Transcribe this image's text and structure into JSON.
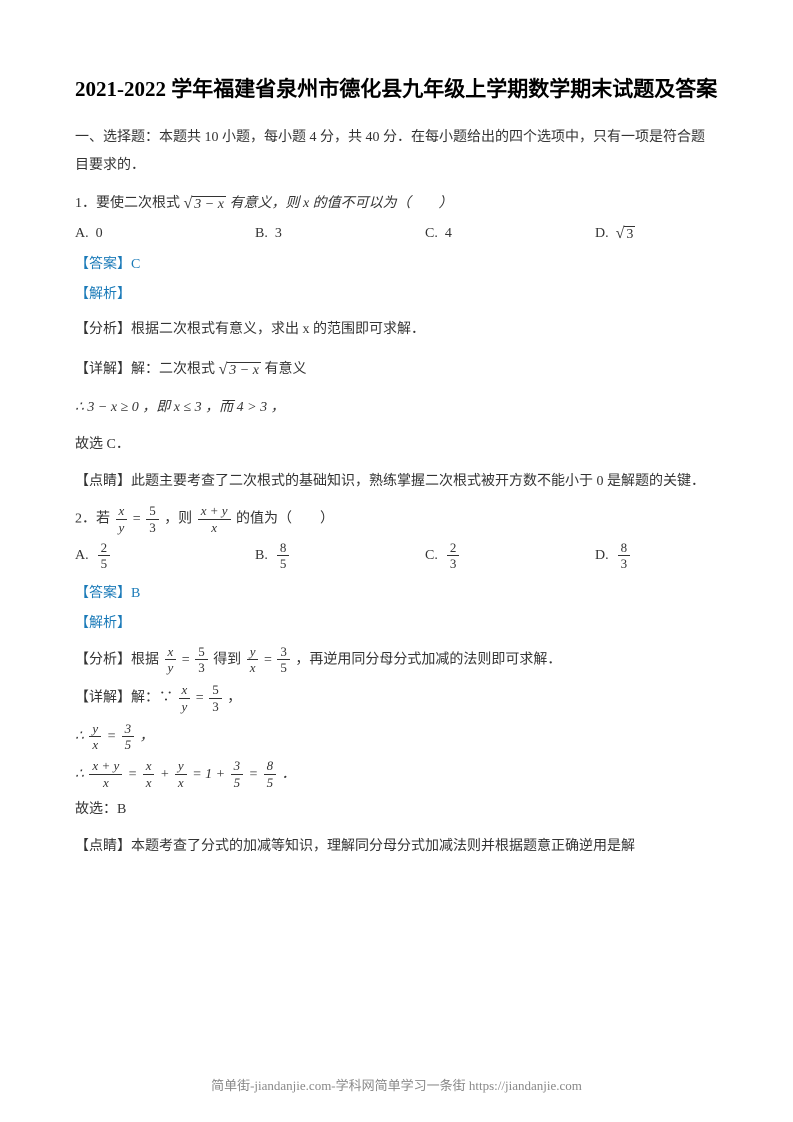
{
  "title": "2021-2022 学年福建省泉州市德化县九年级上学期数学期末试题及答案",
  "section_header": "一、选择题：本题共 10 小题，每小题 4 分，共 40 分．在每小题给出的四个选项中，只有一项是符合题目要求的．",
  "q1": {
    "prefix": "1．要使二次根式",
    "expr_inner": "3 − x",
    "suffix": " 有意义，则 x 的值不可以为（　　）",
    "options": {
      "a_label": "A.",
      "a_val": "0",
      "b_label": "B.",
      "b_val": "3",
      "c_label": "C.",
      "c_val": "4",
      "d_label": "D.",
      "d_val_inner": "3"
    },
    "answer_label": "【答案】",
    "answer": "C",
    "parse_label": "【解析】",
    "analysis1": "【分析】根据二次根式有意义，求出 x 的范围即可求解．",
    "detail_prefix": "【详解】解：二次根式 ",
    "detail_inner": "3 − x",
    "detail_suffix": " 有意义",
    "step": "∴ 3 − x ≥ 0 ，即 x ≤ 3 ，而 4 > 3 ，",
    "conclusion": "故选 C．",
    "comment": "【点睛】此题主要考查了二次根式的基础知识，熟练掌握二次根式被开方数不能小于 0 是解题的关键．"
  },
  "q2": {
    "prefix": "2．若 ",
    "frac1_num": "x",
    "frac1_den": "y",
    "eq": " = ",
    "frac2_num": "5",
    "frac2_den": "3",
    "mid": " ，则 ",
    "frac3_num": "x + y",
    "frac3_den": "x",
    "suffix": " 的值为（　　）",
    "options": {
      "a_label": "A.",
      "a_num": "2",
      "a_den": "5",
      "b_label": "B.",
      "b_num": "8",
      "b_den": "5",
      "c_label": "C.",
      "c_num": "2",
      "c_den": "3",
      "d_label": "D.",
      "d_num": "8",
      "d_den": "3"
    },
    "answer_label": "【答案】",
    "answer": "B",
    "parse_label": "【解析】",
    "analysis_prefix": "【分析】根据 ",
    "a_f1_num": "x",
    "a_f1_den": "y",
    "a_eq1": " = ",
    "a_f2_num": "5",
    "a_f2_den": "3",
    "a_mid": " 得到 ",
    "a_f3_num": "y",
    "a_f3_den": "x",
    "a_eq2": " = ",
    "a_f4_num": "3",
    "a_f4_den": "5",
    "analysis_suffix": " ，再逆用同分母分式加减的法则即可求解．",
    "detail_prefix": "【详解】解：∵ ",
    "d_f1_num": "x",
    "d_f1_den": "y",
    "d_eq": " = ",
    "d_f2_num": "5",
    "d_f2_den": "3",
    "detail_suffix": " ，",
    "step1_prefix": "∴ ",
    "s1_f1_num": "y",
    "s1_f1_den": "x",
    "s1_eq": " = ",
    "s1_f2_num": "3",
    "s1_f2_den": "5",
    "step1_suffix": " ，",
    "step2_prefix": "∴ ",
    "s2_f1_num": "x + y",
    "s2_f1_den": "x",
    "s2_eq1": " = ",
    "s2_f2_num": "x",
    "s2_f2_den": "x",
    "s2_plus1": " + ",
    "s2_f3_num": "y",
    "s2_f3_den": "x",
    "s2_eq2": " = 1 + ",
    "s2_f4_num": "3",
    "s2_f4_den": "5",
    "s2_eq3": " = ",
    "s2_f5_num": "8",
    "s2_f5_den": "5",
    "step2_suffix": " ．",
    "conclusion": "故选：B",
    "comment": "【点睛】本题考查了分式的加减等知识，理解同分母分式加减法则并根据题意正确逆用是解"
  },
  "footer": "简单街-jiandanjie.com-学科网简单学习一条街 https://jiandanjie.com"
}
